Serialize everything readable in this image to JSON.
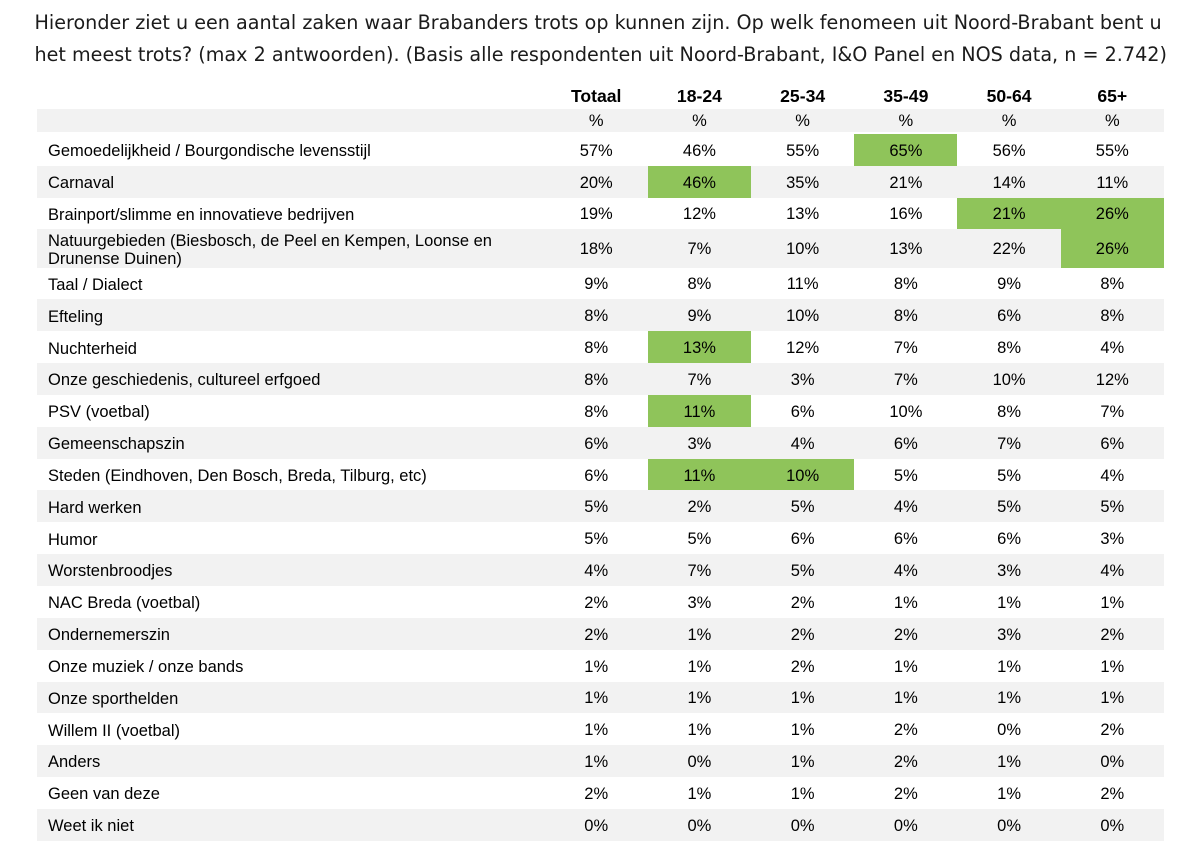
{
  "title": {
    "line1": "Hieronder ziet u een aantal zaken waar Brabanders trots op kunnen zijn. Op welk fenomeen uit Noord-Brabant bent u",
    "line2": "het meest trots? (max 2 antwoorden). (Basis alle respondenten uit Noord-Brabant, I&O Panel en NOS data, n = 2.742)"
  },
  "colors": {
    "highlight_green": "#8fc45a",
    "row_shade": "#f2f2f2",
    "text": "#000000"
  },
  "chart_data": {
    "type": "table",
    "title": "Hieronder ziet u een aantal zaken waar Brabanders trots op kunnen zijn. Op welk fenomeen uit Noord-Brabant bent u het meest trots? (max 2 antwoorden). (Basis alle respondenten uit Noord-Brabant, I&O Panel en NOS data, n = 2.742)",
    "columns": [
      "Totaal",
      "18-24",
      "25-34",
      "35-49",
      "50-64",
      "65+"
    ],
    "unit_row": [
      "%",
      "%",
      "%",
      "%",
      "%",
      "%"
    ],
    "value_suffix": "%",
    "highlight_meaning": "green cells mark age groups scoring notably high for that answer",
    "rows": [
      {
        "label": "Gemoedelijkheid / Bourgondische levensstijl",
        "values": [
          57,
          46,
          55,
          65,
          56,
          55
        ],
        "highlight": [
          3
        ]
      },
      {
        "label": "Carnaval",
        "values": [
          20,
          46,
          35,
          21,
          14,
          11
        ],
        "highlight": [
          1
        ]
      },
      {
        "label": "Brainport/slimme en innovatieve bedrijven",
        "values": [
          19,
          12,
          13,
          16,
          21,
          26
        ],
        "highlight": [
          4,
          5
        ]
      },
      {
        "label": "Natuurgebieden (Biesbosch, de Peel en Kempen, Loonse en Drunense Duinen)",
        "values": [
          18,
          7,
          10,
          13,
          22,
          26
        ],
        "highlight": [
          5
        ],
        "tall": true
      },
      {
        "label": "Taal / Dialect",
        "values": [
          9,
          8,
          11,
          8,
          9,
          8
        ],
        "highlight": []
      },
      {
        "label": "Efteling",
        "values": [
          8,
          9,
          10,
          8,
          6,
          8
        ],
        "highlight": []
      },
      {
        "label": "Nuchterheid",
        "values": [
          8,
          13,
          12,
          7,
          8,
          4
        ],
        "highlight": [
          1
        ]
      },
      {
        "label": "Onze geschiedenis, cultureel erfgoed",
        "values": [
          8,
          7,
          3,
          7,
          10,
          12
        ],
        "highlight": []
      },
      {
        "label": "PSV (voetbal)",
        "values": [
          8,
          11,
          6,
          10,
          8,
          7
        ],
        "highlight": [
          1
        ]
      },
      {
        "label": "Gemeenschapszin",
        "values": [
          6,
          3,
          4,
          6,
          7,
          6
        ],
        "highlight": []
      },
      {
        "label": "Steden (Eindhoven, Den Bosch, Breda, Tilburg, etc)",
        "values": [
          6,
          11,
          10,
          5,
          5,
          4
        ],
        "highlight": [
          1,
          2
        ]
      },
      {
        "label": "Hard werken",
        "values": [
          5,
          2,
          5,
          4,
          5,
          5
        ],
        "highlight": []
      },
      {
        "label": "Humor",
        "values": [
          5,
          5,
          6,
          6,
          6,
          3
        ],
        "highlight": []
      },
      {
        "label": "Worstenbroodjes",
        "values": [
          4,
          7,
          5,
          4,
          3,
          4
        ],
        "highlight": []
      },
      {
        "label": "NAC Breda (voetbal)",
        "values": [
          2,
          3,
          2,
          1,
          1,
          1
        ],
        "highlight": []
      },
      {
        "label": "Ondernemerszin",
        "values": [
          2,
          1,
          2,
          2,
          3,
          2
        ],
        "highlight": []
      },
      {
        "label": "Onze muziek / onze bands",
        "values": [
          1,
          1,
          2,
          1,
          1,
          1
        ],
        "highlight": []
      },
      {
        "label": "Onze sporthelden",
        "values": [
          1,
          1,
          1,
          1,
          1,
          1
        ],
        "highlight": []
      },
      {
        "label": "Willem II (voetbal)",
        "values": [
          1,
          1,
          1,
          2,
          0,
          2
        ],
        "highlight": []
      },
      {
        "label": "Anders",
        "values": [
          1,
          0,
          1,
          2,
          1,
          0
        ],
        "highlight": []
      },
      {
        "label": "Geen van deze",
        "values": [
          2,
          1,
          1,
          2,
          1,
          2
        ],
        "highlight": []
      },
      {
        "label": "Weet ik niet",
        "values": [
          0,
          0,
          0,
          0,
          0,
          0
        ],
        "highlight": []
      }
    ]
  }
}
